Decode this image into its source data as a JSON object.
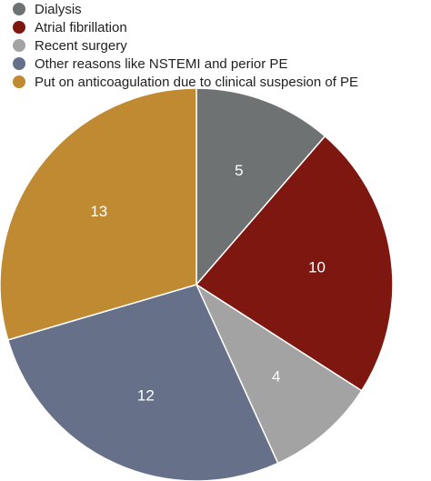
{
  "chart_data": {
    "type": "pie",
    "title": "",
    "legend_position": "top-left",
    "slices": [
      {
        "label": "Dialysis",
        "value": 5,
        "color": "#6e7272"
      },
      {
        "label": "Atrial fibrillation",
        "value": 10,
        "color": "#7d1710"
      },
      {
        "label": "Recent surgery",
        "value": 4,
        "color": "#a3a3a3"
      },
      {
        "label": "Other reasons like NSTEMI and perior PE",
        "value": 12,
        "color": "#667189"
      },
      {
        "label": "Put on anticoagulation due to clinical suspesion of PE",
        "value": 13,
        "color": "#bf8a32"
      }
    ]
  }
}
